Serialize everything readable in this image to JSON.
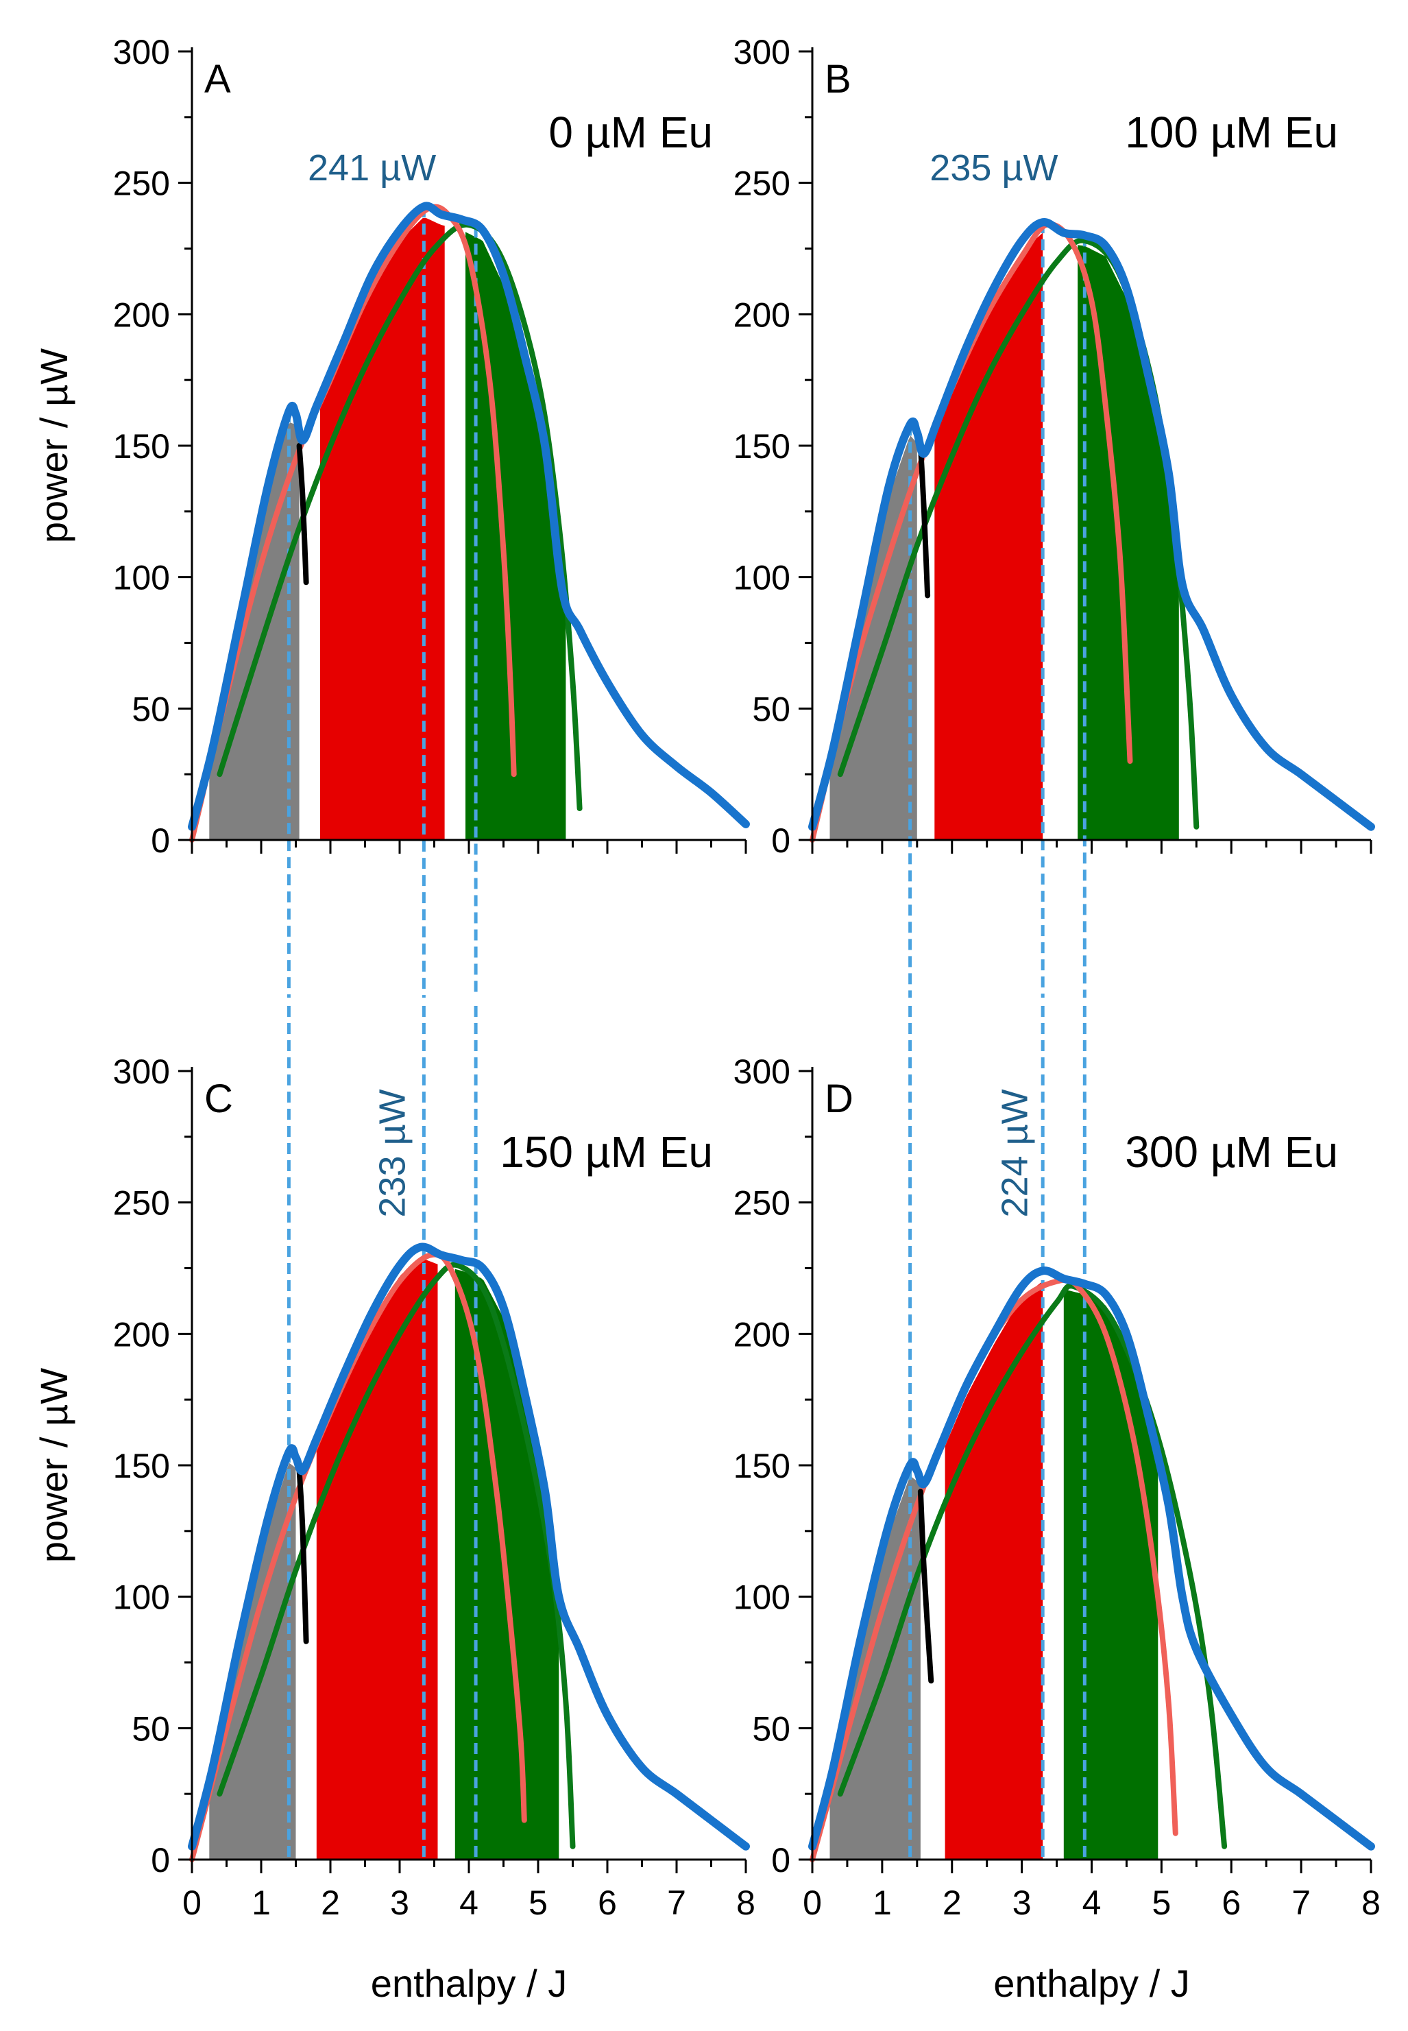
{
  "chart_data": {
    "type": "area",
    "xlabel": "enthalpy / J",
    "ylabel": "power / µW",
    "xlim": [
      0,
      8
    ],
    "ylim": [
      0,
      300
    ],
    "x_ticks": [
      "0",
      "1",
      "2",
      "3",
      "4",
      "5",
      "6",
      "7",
      "8"
    ],
    "y_ticks": [
      "0",
      "50",
      "100",
      "150",
      "200",
      "250",
      "300"
    ],
    "colors": {
      "total": "#1874cd",
      "fit_red": "#f06058",
      "fit_green": "#0a7a18",
      "fill_gray": "#808080",
      "fill_red": "#e60000",
      "fill_green": "#007000",
      "black_seg": "#000000",
      "dashed": "#4aa3e0",
      "peak_label": "#1f5f8b"
    },
    "panels": [
      {
        "letter": "A",
        "condition": "0 µM Eu",
        "peak_label": "241 µW",
        "peak_label_rotated": false,
        "peak": 241,
        "total_curve": [
          [
            0,
            5
          ],
          [
            0.3,
            35
          ],
          [
            0.7,
            85
          ],
          [
            1.1,
            135
          ],
          [
            1.4,
            163
          ],
          [
            1.5,
            162
          ],
          [
            1.6,
            152
          ],
          [
            1.8,
            165
          ],
          [
            2.2,
            190
          ],
          [
            2.6,
            215
          ],
          [
            3.0,
            232
          ],
          [
            3.35,
            241
          ],
          [
            3.6,
            238
          ],
          [
            3.9,
            236
          ],
          [
            4.2,
            232
          ],
          [
            4.5,
            215
          ],
          [
            4.8,
            185
          ],
          [
            5.1,
            150
          ],
          [
            5.35,
            95
          ],
          [
            5.6,
            80
          ],
          [
            6.0,
            60
          ],
          [
            6.5,
            40
          ],
          [
            7.0,
            28
          ],
          [
            7.5,
            18
          ],
          [
            8.0,
            6
          ]
        ],
        "red_curve": [
          [
            0,
            0
          ],
          [
            0.5,
            55
          ],
          [
            1.0,
            105
          ],
          [
            1.5,
            145
          ],
          [
            2.0,
            175
          ],
          [
            2.5,
            205
          ],
          [
            3.0,
            228
          ],
          [
            3.4,
            240
          ],
          [
            3.7,
            238
          ],
          [
            4.0,
            222
          ],
          [
            4.3,
            175
          ],
          [
            4.5,
            110
          ],
          [
            4.6,
            60
          ],
          [
            4.65,
            25
          ]
        ],
        "green_curve": [
          [
            0.4,
            25
          ],
          [
            1.0,
            75
          ],
          [
            1.5,
            115
          ],
          [
            2.0,
            150
          ],
          [
            2.5,
            180
          ],
          [
            3.0,
            205
          ],
          [
            3.5,
            225
          ],
          [
            4.0,
            234
          ],
          [
            4.5,
            220
          ],
          [
            5.0,
            175
          ],
          [
            5.3,
            120
          ],
          [
            5.5,
            60
          ],
          [
            5.6,
            12
          ]
        ],
        "black_segment": [
          [
            1.55,
            150
          ],
          [
            1.6,
            130
          ],
          [
            1.65,
            98
          ]
        ],
        "gray_fill": [
          0.25,
          1.55
        ],
        "red_fill": [
          1.85,
          3.65
        ],
        "green_fill": [
          3.95,
          5.4
        ],
        "dashed_x": [
          1.4,
          3.35,
          4.1
        ]
      },
      {
        "letter": "B",
        "condition": "100 µM Eu",
        "peak_label": "235 µW",
        "peak_label_rotated": false,
        "peak": 235,
        "total_curve": [
          [
            0,
            5
          ],
          [
            0.3,
            35
          ],
          [
            0.7,
            85
          ],
          [
            1.1,
            135
          ],
          [
            1.4,
            158
          ],
          [
            1.5,
            155
          ],
          [
            1.6,
            147
          ],
          [
            1.8,
            160
          ],
          [
            2.2,
            187
          ],
          [
            2.6,
            210
          ],
          [
            3.0,
            228
          ],
          [
            3.3,
            235
          ],
          [
            3.6,
            231
          ],
          [
            3.9,
            230
          ],
          [
            4.2,
            226
          ],
          [
            4.5,
            210
          ],
          [
            4.8,
            178
          ],
          [
            5.1,
            140
          ],
          [
            5.3,
            97
          ],
          [
            5.6,
            80
          ],
          [
            6.0,
            55
          ],
          [
            6.5,
            35
          ],
          [
            7.0,
            25
          ],
          [
            7.5,
            15
          ],
          [
            8.0,
            5
          ]
        ],
        "red_curve": [
          [
            0,
            0
          ],
          [
            0.5,
            55
          ],
          [
            1.0,
            100
          ],
          [
            1.5,
            140
          ],
          [
            2.0,
            172
          ],
          [
            2.5,
            200
          ],
          [
            3.0,
            222
          ],
          [
            3.35,
            234
          ],
          [
            3.7,
            228
          ],
          [
            4.0,
            205
          ],
          [
            4.2,
            165
          ],
          [
            4.4,
            110
          ],
          [
            4.5,
            60
          ],
          [
            4.55,
            30
          ]
        ],
        "green_curve": [
          [
            0.4,
            25
          ],
          [
            1.0,
            72
          ],
          [
            1.5,
            112
          ],
          [
            2.0,
            146
          ],
          [
            2.5,
            176
          ],
          [
            3.0,
            200
          ],
          [
            3.5,
            220
          ],
          [
            3.9,
            228
          ],
          [
            4.4,
            215
          ],
          [
            4.9,
            170
          ],
          [
            5.2,
            115
          ],
          [
            5.4,
            55
          ],
          [
            5.5,
            5
          ]
        ],
        "black_segment": [
          [
            1.55,
            150
          ],
          [
            1.6,
            125
          ],
          [
            1.65,
            93
          ]
        ],
        "gray_fill": [
          0.25,
          1.5
        ],
        "red_fill": [
          1.75,
          3.3
        ],
        "green_fill": [
          3.8,
          5.25
        ],
        "dashed_x": [
          1.4,
          3.3,
          3.9
        ]
      },
      {
        "letter": "C",
        "condition": "150 µM Eu",
        "peak_label": "233 µW",
        "peak_label_rotated": true,
        "peak": 233,
        "total_curve": [
          [
            0,
            5
          ],
          [
            0.3,
            35
          ],
          [
            0.7,
            85
          ],
          [
            1.1,
            130
          ],
          [
            1.4,
            155
          ],
          [
            1.5,
            153
          ],
          [
            1.6,
            148
          ],
          [
            1.8,
            160
          ],
          [
            2.2,
            185
          ],
          [
            2.6,
            208
          ],
          [
            3.0,
            226
          ],
          [
            3.3,
            233
          ],
          [
            3.6,
            230
          ],
          [
            3.9,
            228
          ],
          [
            4.2,
            225
          ],
          [
            4.5,
            210
          ],
          [
            4.8,
            178
          ],
          [
            5.1,
            140
          ],
          [
            5.3,
            100
          ],
          [
            5.6,
            80
          ],
          [
            6.0,
            55
          ],
          [
            6.5,
            35
          ],
          [
            7.0,
            25
          ],
          [
            7.5,
            15
          ],
          [
            8.0,
            5
          ]
        ],
        "red_curve": [
          [
            0,
            0
          ],
          [
            0.5,
            50
          ],
          [
            1.0,
            98
          ],
          [
            1.5,
            138
          ],
          [
            2.0,
            170
          ],
          [
            2.5,
            198
          ],
          [
            3.0,
            220
          ],
          [
            3.45,
            230
          ],
          [
            3.75,
            224
          ],
          [
            4.1,
            195
          ],
          [
            4.4,
            140
          ],
          [
            4.6,
            90
          ],
          [
            4.75,
            45
          ],
          [
            4.8,
            15
          ]
        ],
        "green_curve": [
          [
            0.4,
            25
          ],
          [
            1.0,
            70
          ],
          [
            1.5,
            110
          ],
          [
            2.0,
            145
          ],
          [
            2.5,
            175
          ],
          [
            3.0,
            200
          ],
          [
            3.5,
            220
          ],
          [
            3.85,
            226
          ],
          [
            4.3,
            212
          ],
          [
            4.8,
            165
          ],
          [
            5.2,
            110
          ],
          [
            5.4,
            60
          ],
          [
            5.5,
            5
          ]
        ],
        "black_segment": [
          [
            1.55,
            148
          ],
          [
            1.6,
            125
          ],
          [
            1.65,
            83
          ]
        ],
        "gray_fill": [
          0.25,
          1.5
        ],
        "red_fill": [
          1.8,
          3.55
        ],
        "green_fill": [
          3.8,
          5.3
        ],
        "dashed_x": [
          1.4,
          3.35,
          4.1
        ]
      },
      {
        "letter": "D",
        "condition": "300 µM Eu",
        "peak_label": "224 µW",
        "peak_label_rotated": true,
        "peak": 224,
        "total_curve": [
          [
            0,
            5
          ],
          [
            0.3,
            35
          ],
          [
            0.7,
            85
          ],
          [
            1.1,
            128
          ],
          [
            1.4,
            150
          ],
          [
            1.5,
            148
          ],
          [
            1.6,
            143
          ],
          [
            1.8,
            155
          ],
          [
            2.2,
            180
          ],
          [
            2.6,
            200
          ],
          [
            3.0,
            218
          ],
          [
            3.3,
            224
          ],
          [
            3.6,
            221
          ],
          [
            3.9,
            219
          ],
          [
            4.2,
            215
          ],
          [
            4.5,
            200
          ],
          [
            4.8,
            170
          ],
          [
            5.1,
            135
          ],
          [
            5.3,
            100
          ],
          [
            5.5,
            80
          ],
          [
            6.0,
            55
          ],
          [
            6.5,
            35
          ],
          [
            7.0,
            25
          ],
          [
            7.5,
            15
          ],
          [
            8.0,
            5
          ]
        ],
        "red_curve": [
          [
            0,
            0
          ],
          [
            0.5,
            48
          ],
          [
            1.0,
            95
          ],
          [
            1.5,
            135
          ],
          [
            2.0,
            168
          ],
          [
            2.5,
            195
          ],
          [
            3.0,
            213
          ],
          [
            3.5,
            220
          ],
          [
            3.8,
            218
          ],
          [
            4.2,
            200
          ],
          [
            4.6,
            160
          ],
          [
            4.9,
            110
          ],
          [
            5.1,
            60
          ],
          [
            5.2,
            10
          ]
        ],
        "green_curve": [
          [
            0.4,
            25
          ],
          [
            1.0,
            68
          ],
          [
            1.5,
            108
          ],
          [
            2.0,
            142
          ],
          [
            2.5,
            170
          ],
          [
            3.0,
            193
          ],
          [
            3.5,
            212
          ],
          [
            3.75,
            218
          ],
          [
            4.3,
            205
          ],
          [
            4.9,
            165
          ],
          [
            5.4,
            110
          ],
          [
            5.7,
            60
          ],
          [
            5.9,
            5
          ]
        ],
        "black_segment": [
          [
            1.55,
            140
          ],
          [
            1.6,
            110
          ],
          [
            1.7,
            68
          ]
        ],
        "gray_fill": [
          0.25,
          1.55
        ],
        "red_fill": [
          1.9,
          3.3
        ],
        "green_fill": [
          3.6,
          4.95
        ],
        "dashed_x": [
          1.4,
          3.3,
          3.9
        ]
      }
    ]
  }
}
